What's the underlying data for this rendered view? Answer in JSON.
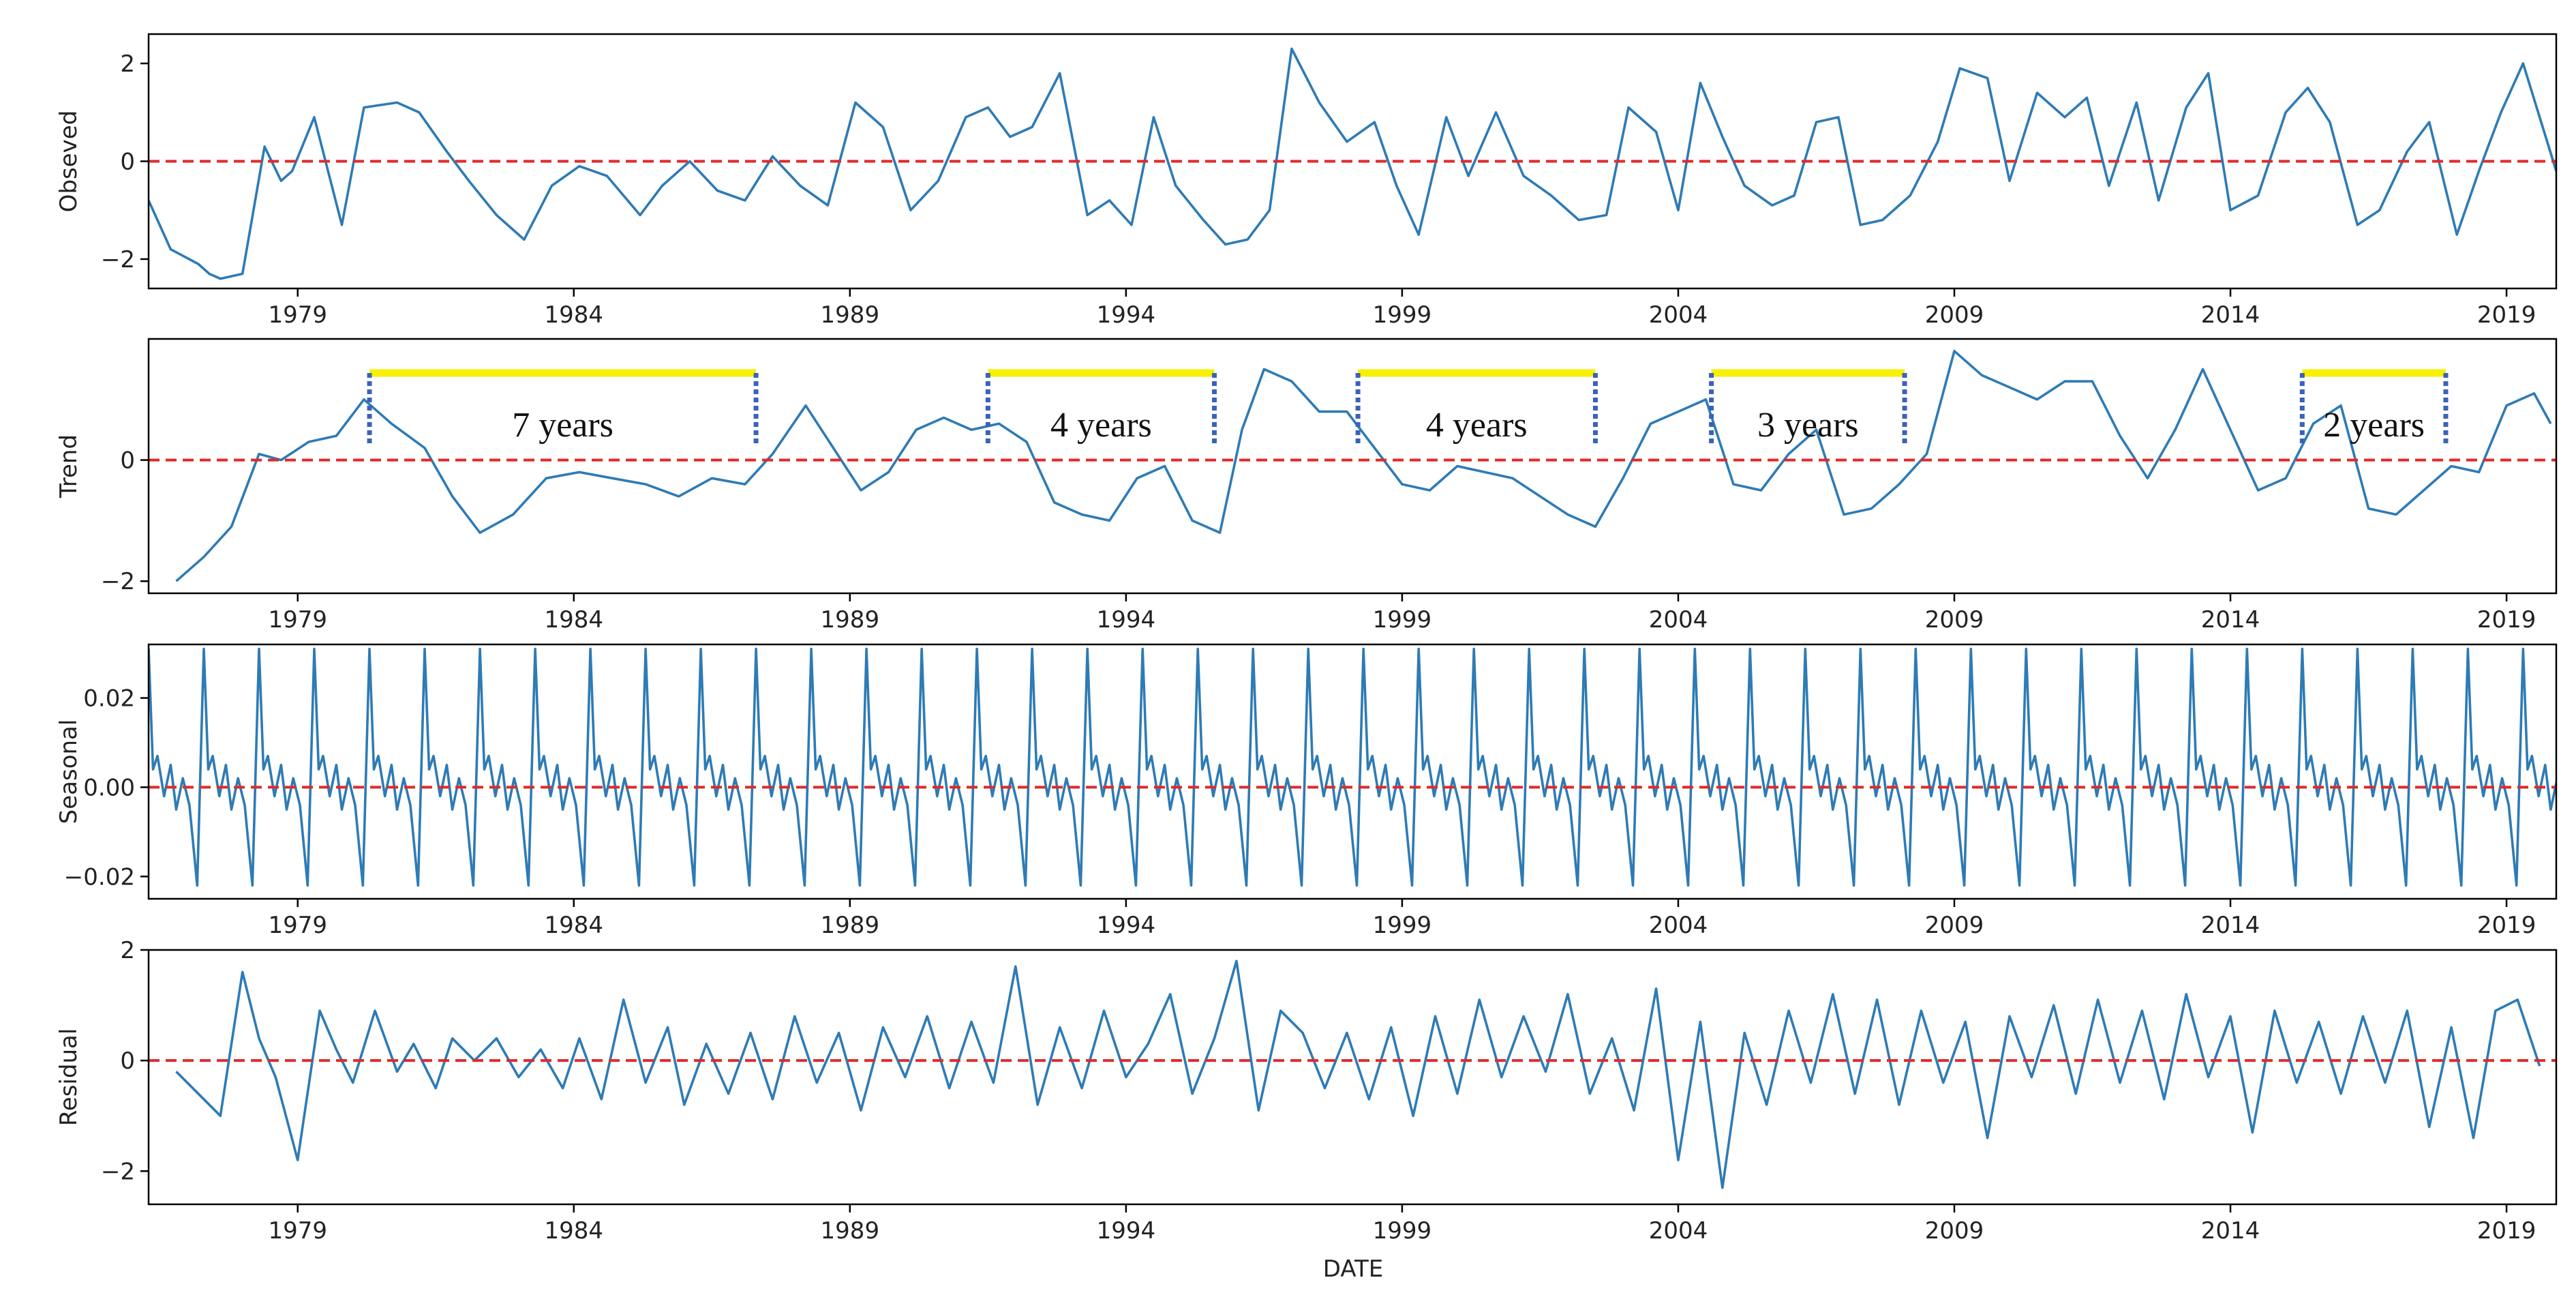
{
  "colors": {
    "line": "#2e7bb5",
    "reference": "#e02a2a",
    "highlight": "#f7f000",
    "bracket": "#3a63b8",
    "axis": "#000000"
  },
  "chart_data": [
    {
      "type": "line",
      "id": "observed",
      "ylabel": "Obseved",
      "xlim": [
        1976.3,
        2019.9
      ],
      "ylim": [
        -2.6,
        2.6
      ],
      "yticks": [
        2,
        0,
        -2
      ],
      "ytick_labels": [
        "2",
        "0",
        "−2"
      ],
      "xticks": [
        1979,
        1984,
        1989,
        1994,
        1999,
        2004,
        2009,
        2014,
        2019
      ],
      "xtick_labels": [
        "1979",
        "1984",
        "1989",
        "1994",
        "1999",
        "2004",
        "2009",
        "2014",
        "2019"
      ],
      "reference_line": 0,
      "x": [
        1976.3,
        1976.7,
        1977.2,
        1977.4,
        1977.6,
        1978.0,
        1978.4,
        1978.7,
        1978.9,
        1979.3,
        1979.8,
        1980.2,
        1980.8,
        1981.2,
        1981.7,
        1982.1,
        1982.6,
        1983.1,
        1983.6,
        1984.1,
        1984.6,
        1985.2,
        1985.6,
        1986.1,
        1986.6,
        1987.1,
        1987.6,
        1988.1,
        1988.6,
        1989.1,
        1989.6,
        1990.1,
        1990.6,
        1991.1,
        1991.5,
        1991.9,
        1992.3,
        1992.8,
        1993.3,
        1993.7,
        1994.1,
        1994.5,
        1994.9,
        1995.4,
        1995.8,
        1996.2,
        1996.6,
        1997.0,
        1997.5,
        1998.0,
        1998.5,
        1998.9,
        1999.3,
        1999.8,
        2000.2,
        2000.7,
        2001.2,
        2001.7,
        2002.2,
        2002.7,
        2003.1,
        2003.6,
        2004.0,
        2004.4,
        2004.8,
        2005.2,
        2005.7,
        2006.1,
        2006.5,
        2006.9,
        2007.3,
        2007.7,
        2008.2,
        2008.7,
        2009.1,
        2009.6,
        2010.0,
        2010.5,
        2011.0,
        2011.4,
        2011.8,
        2012.3,
        2012.7,
        2013.2,
        2013.6,
        2014.0,
        2014.5,
        2015.0,
        2015.4,
        2015.8,
        2016.3,
        2016.7,
        2017.2,
        2017.6,
        2018.1,
        2018.5,
        2018.9,
        2019.3,
        2019.9
      ],
      "y": [
        -0.8,
        -1.8,
        -2.1,
        -2.3,
        -2.4,
        -2.3,
        0.3,
        -0.4,
        -0.2,
        0.9,
        -1.3,
        1.1,
        1.2,
        1.0,
        0.2,
        -0.4,
        -1.1,
        -1.6,
        -0.5,
        -0.1,
        -0.3,
        -1.1,
        -0.5,
        0.0,
        -0.6,
        -0.8,
        0.1,
        -0.5,
        -0.9,
        1.2,
        0.7,
        -1.0,
        -0.4,
        0.9,
        1.1,
        0.5,
        0.7,
        1.8,
        -1.1,
        -0.8,
        -1.3,
        0.9,
        -0.5,
        -1.2,
        -1.7,
        -1.6,
        -1.0,
        2.3,
        1.2,
        0.4,
        0.8,
        -0.5,
        -1.5,
        0.9,
        -0.3,
        1.0,
        -0.3,
        -0.7,
        -1.2,
        -1.1,
        1.1,
        0.6,
        -1.0,
        1.6,
        0.5,
        -0.5,
        -0.9,
        -0.7,
        0.8,
        0.9,
        -1.3,
        -1.2,
        -0.7,
        0.4,
        1.9,
        1.7,
        -0.4,
        1.4,
        0.9,
        1.3,
        -0.5,
        1.2,
        -0.8,
        1.1,
        1.8,
        -1.0,
        -0.7,
        1.0,
        1.5,
        0.8,
        -1.3,
        -1.0,
        0.2,
        0.8,
        -1.5,
        -0.2,
        1.0,
        2.0,
        -0.2
      ]
    },
    {
      "type": "line",
      "id": "trend",
      "ylabel": "Trend",
      "xlim": [
        1976.3,
        2019.9
      ],
      "ylim": [
        -2.2,
        2.0
      ],
      "yticks": [
        0,
        -2
      ],
      "ytick_labels": [
        "0",
        "−2"
      ],
      "xticks": [
        1979,
        1984,
        1989,
        1994,
        1999,
        2004,
        2009,
        2014,
        2019
      ],
      "xtick_labels": [
        "1979",
        "1984",
        "1989",
        "1994",
        "1999",
        "2004",
        "2009",
        "2014",
        "2019"
      ],
      "reference_line": 0,
      "x": [
        1976.8,
        1977.3,
        1977.8,
        1978.3,
        1978.7,
        1979.2,
        1979.7,
        1980.2,
        1980.7,
        1981.3,
        1981.8,
        1982.3,
        1982.9,
        1983.5,
        1984.1,
        1984.7,
        1985.3,
        1985.9,
        1986.5,
        1987.1,
        1987.6,
        1988.2,
        1988.7,
        1989.2,
        1989.7,
        1990.2,
        1990.7,
        1991.2,
        1991.7,
        1992.2,
        1992.7,
        1993.2,
        1993.7,
        1994.2,
        1994.7,
        1995.2,
        1995.7,
        1996.1,
        1996.5,
        1997.0,
        1997.5,
        1998.0,
        1998.5,
        1999.0,
        1999.5,
        2000.0,
        2000.5,
        2001.0,
        2001.5,
        2002.0,
        2002.5,
        2003.0,
        2003.5,
        2004.0,
        2004.5,
        2005.0,
        2005.5,
        2006.0,
        2006.5,
        2007.0,
        2007.5,
        2008.0,
        2008.5,
        2009.0,
        2009.5,
        2010.0,
        2010.5,
        2011.0,
        2011.5,
        2012.0,
        2012.5,
        2013.0,
        2013.5,
        2014.0,
        2014.5,
        2015.0,
        2015.5,
        2016.0,
        2016.5,
        2017.0,
        2017.5,
        2018.0,
        2018.5,
        2019.0,
        2019.5,
        2019.8
      ],
      "y": [
        -2.0,
        -1.6,
        -1.1,
        0.1,
        0.0,
        0.3,
        0.4,
        1.0,
        0.6,
        0.2,
        -0.6,
        -1.2,
        -0.9,
        -0.3,
        -0.2,
        -0.3,
        -0.4,
        -0.6,
        -0.3,
        -0.4,
        0.1,
        0.9,
        0.2,
        -0.5,
        -0.2,
        0.5,
        0.7,
        0.5,
        0.6,
        0.3,
        -0.7,
        -0.9,
        -1.0,
        -0.3,
        -0.1,
        -1.0,
        -1.2,
        0.5,
        1.5,
        1.3,
        0.8,
        0.8,
        0.2,
        -0.4,
        -0.5,
        -0.1,
        -0.2,
        -0.3,
        -0.6,
        -0.9,
        -1.1,
        -0.3,
        0.6,
        0.8,
        1.0,
        -0.4,
        -0.5,
        0.1,
        0.5,
        -0.9,
        -0.8,
        -0.4,
        0.1,
        1.8,
        1.4,
        1.2,
        1.0,
        1.3,
        1.3,
        0.4,
        -0.3,
        0.5,
        1.5,
        0.5,
        -0.5,
        -0.3,
        0.6,
        0.9,
        -0.8,
        -0.9,
        -0.5,
        -0.1,
        -0.2,
        0.9,
        1.1,
        0.6
      ]
    },
    {
      "type": "line",
      "id": "seasonal",
      "ylabel": "Seasonal",
      "xlim": [
        1976.3,
        2019.9
      ],
      "ylim": [
        -0.025,
        0.032
      ],
      "yticks": [
        0.02,
        0.0,
        -0.02
      ],
      "ytick_labels": [
        "0.02",
        "0.00",
        "−0.02"
      ],
      "xticks": [
        1979,
        1984,
        1989,
        1994,
        1999,
        2004,
        2009,
        2014,
        2019
      ],
      "xtick_labels": [
        "1979",
        "1984",
        "1989",
        "1994",
        "1999",
        "2004",
        "2009",
        "2014",
        "2019"
      ],
      "reference_line": 0,
      "period_start": 1976.3,
      "period_years": 1,
      "period_count": 44,
      "period_phase": [
        0.0,
        0.08,
        0.16,
        0.28,
        0.4,
        0.5,
        0.62,
        0.74,
        0.88,
        1.0
      ],
      "period_values": [
        0.031,
        0.004,
        0.007,
        -0.002,
        0.005,
        -0.005,
        0.002,
        -0.004,
        -0.022,
        0.031
      ]
    },
    {
      "type": "line",
      "id": "residual",
      "ylabel": "Residual",
      "xlim": [
        1976.3,
        2019.9
      ],
      "ylim": [
        -2.6,
        2.0
      ],
      "yticks": [
        2,
        0,
        -2
      ],
      "ytick_labels": [
        "2",
        "0",
        "−2"
      ],
      "xticks": [
        1979,
        1984,
        1989,
        1994,
        1999,
        2004,
        2009,
        2014,
        2019
      ],
      "xtick_labels": [
        "1979",
        "1984",
        "1989",
        "1994",
        "1999",
        "2004",
        "2009",
        "2014",
        "2019"
      ],
      "xlabel": "DATE",
      "reference_line": 0,
      "x": [
        1976.8,
        1977.2,
        1977.6,
        1978.0,
        1978.3,
        1978.6,
        1979.0,
        1979.4,
        1979.7,
        1980.0,
        1980.4,
        1980.8,
        1981.1,
        1981.5,
        1981.8,
        1982.2,
        1982.6,
        1983.0,
        1983.4,
        1983.8,
        1984.1,
        1984.5,
        1984.9,
        1985.3,
        1985.7,
        1986.0,
        1986.4,
        1986.8,
        1987.2,
        1987.6,
        1988.0,
        1988.4,
        1988.8,
        1989.2,
        1989.6,
        1990.0,
        1990.4,
        1990.8,
        1991.2,
        1991.6,
        1992.0,
        1992.4,
        1992.8,
        1993.2,
        1993.6,
        1994.0,
        1994.4,
        1994.8,
        1995.2,
        1995.6,
        1996.0,
        1996.4,
        1996.8,
        1997.2,
        1997.6,
        1998.0,
        1998.4,
        1998.8,
        1999.2,
        1999.6,
        2000.0,
        2000.4,
        2000.8,
        2001.2,
        2001.6,
        2002.0,
        2002.4,
        2002.8,
        2003.2,
        2003.6,
        2004.0,
        2004.4,
        2004.8,
        2005.2,
        2005.6,
        2006.0,
        2006.4,
        2006.8,
        2007.2,
        2007.6,
        2008.0,
        2008.4,
        2008.8,
        2009.2,
        2009.6,
        2010.0,
        2010.4,
        2010.8,
        2011.2,
        2011.6,
        2012.0,
        2012.4,
        2012.8,
        2013.2,
        2013.6,
        2014.0,
        2014.4,
        2014.8,
        2015.2,
        2015.6,
        2016.0,
        2016.4,
        2016.8,
        2017.2,
        2017.6,
        2018.0,
        2018.4,
        2018.8,
        2019.2,
        2019.6
      ],
      "y": [
        -0.2,
        -0.6,
        -1.0,
        1.6,
        0.4,
        -0.3,
        -1.8,
        0.9,
        0.2,
        -0.4,
        0.9,
        -0.2,
        0.3,
        -0.5,
        0.4,
        0.0,
        0.4,
        -0.3,
        0.2,
        -0.5,
        0.4,
        -0.7,
        1.1,
        -0.4,
        0.6,
        -0.8,
        0.3,
        -0.6,
        0.5,
        -0.7,
        0.8,
        -0.4,
        0.5,
        -0.9,
        0.6,
        -0.3,
        0.8,
        -0.5,
        0.7,
        -0.4,
        1.7,
        -0.8,
        0.6,
        -0.5,
        0.9,
        -0.3,
        0.3,
        1.2,
        -0.6,
        0.4,
        1.8,
        -0.9,
        0.9,
        0.5,
        -0.5,
        0.5,
        -0.7,
        0.6,
        -1.0,
        0.8,
        -0.6,
        1.1,
        -0.3,
        0.8,
        -0.2,
        1.2,
        -0.6,
        0.4,
        -0.9,
        1.3,
        -1.8,
        0.7,
        -2.3,
        0.5,
        -0.8,
        0.9,
        -0.4,
        1.2,
        -0.6,
        1.1,
        -0.8,
        0.9,
        -0.4,
        0.7,
        -1.4,
        0.8,
        -0.3,
        1.0,
        -0.6,
        1.1,
        -0.4,
        0.9,
        -0.7,
        1.2,
        -0.3,
        0.8,
        -1.3,
        0.9,
        -0.4,
        0.7,
        -0.6,
        0.8,
        -0.4,
        0.9,
        -1.2,
        0.6,
        -1.4,
        0.9,
        1.1,
        -0.1
      ]
    }
  ],
  "annotations": [
    {
      "label": "7 years",
      "start": 1980.3,
      "end": 1987.3
    },
    {
      "label": "4 years",
      "start": 1991.5,
      "end": 1995.6
    },
    {
      "label": "4 years",
      "start": 1998.2,
      "end": 2002.5
    },
    {
      "label": "3 years",
      "start": 2004.6,
      "end": 2008.1
    },
    {
      "label": "2 years",
      "start": 2015.3,
      "end": 2017.9
    }
  ]
}
